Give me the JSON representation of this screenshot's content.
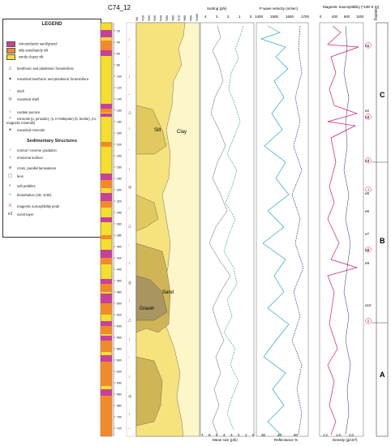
{
  "core_id": "C74_12",
  "legend": {
    "title": "LEGEND",
    "lithology": [
      {
        "label": "volcaniclastic sand/gravel",
        "color": "#c8409a"
      },
      {
        "label": "silty sand/sandy silt",
        "color": "#f08a2a"
      },
      {
        "label": "sandy clayey silt",
        "color": "#f5de2e"
      }
    ],
    "fossils": [
      {
        "label": "benthonic and planktonic foraminifera",
        "icon": "foraminifera-icon"
      },
      {
        "label": "reworked benthonic and planktonic foraminifera",
        "icon": "reworked-foraminifera-icon"
      },
      {
        "label": "shell",
        "icon": "shell-icon"
      },
      {
        "label": "reworked shell",
        "icon": "reworked-shell-icon"
      }
    ],
    "minerals": [
      {
        "label": "oxidate pumice",
        "icon": "pumice-icon"
      },
      {
        "label": "minerals (p, piroxide), (s, K-feldspate) (b, biotite), (m, magnetic minerals)",
        "icon": "minerals-icon"
      },
      {
        "label": "reworked minerals",
        "icon": "reworked-minerals-icon"
      }
    ],
    "structures_title": "Sedimentary Structures",
    "structures": [
      {
        "label": "normal / reverse gradation",
        "icon": "gradation-icon"
      },
      {
        "label": "erosional surface",
        "icon": "erosional-surface-icon"
      },
      {
        "label": "cross, parallel laminations",
        "icon": "lamination-icon"
      },
      {
        "label": "lens",
        "icon": "lens-icon"
      },
      {
        "label": "soft pebbles",
        "icon": "pebble-icon"
      },
      {
        "label": "bioturbation (2D, 3/4D)",
        "icon": "bioturbation-icon"
      },
      {
        "label": "magnetic susceptibility peak",
        "icon": "peak-icon"
      },
      {
        "label": "event layer",
        "icon": "event-layer-icon"
      }
    ]
  },
  "depth_ticks": [
    "20",
    "40",
    "60",
    "80",
    "100",
    "120",
    "140",
    "160",
    "180",
    "200",
    "220",
    "240",
    "260",
    "280",
    "300",
    "320",
    "340",
    "360",
    "380",
    "400",
    "420",
    "440",
    "460",
    "480",
    "500",
    "520",
    "540",
    "560",
    "580",
    "600",
    "620",
    "640",
    "660",
    "680",
    "700",
    "720"
  ],
  "grain_size_headers": [
    "%0",
    "%10",
    "%20",
    "%30",
    "%40",
    "%50",
    "%60",
    "%70",
    "%80",
    "%90",
    "%100"
  ],
  "grain_labels": {
    "silt": "Silt",
    "clay": "Clay",
    "sand": "Sand",
    "gravel": "Gravel"
  },
  "sorting_axis": {
    "title": "Sorting (phi)",
    "ticks": [
      "4",
      "3",
      "2",
      "1",
      "0"
    ]
  },
  "mean_axis": {
    "title": "Mean size (phi)",
    "ticks": [
      "7",
      "6",
      "5",
      "4",
      "3",
      "2",
      "1",
      "0"
    ]
  },
  "pwave_axis": {
    "title": "P wave velocity (m/sec)",
    "ticks": [
      "1400",
      "1500",
      "1600",
      "1700"
    ]
  },
  "reflectance_axis": {
    "title": "Reflectance %",
    "ticks": [
      "30",
      "40",
      "50"
    ]
  },
  "magsus_axis": {
    "title": "Magnetic Susceptibility (*10E-5 SI)",
    "ticks": [
      "0",
      "400",
      "800",
      "1200"
    ]
  },
  "density_axis": {
    "title": "Density (g/cm³)",
    "ticks": [
      "1.2",
      "1.6",
      "2.0"
    ]
  },
  "facies_title": "Facies",
  "facies": [
    "C",
    "B",
    "A"
  ],
  "events": [
    "e1",
    "e2",
    "e3",
    "e4",
    "e5",
    "e6",
    "e7",
    "e8",
    "e9",
    "e10"
  ],
  "peaks": [
    "1",
    "2",
    "3",
    "4",
    "5",
    "6"
  ],
  "colors": {
    "volcaniclastic": "#c8409a",
    "silty_sand": "#f08a2a",
    "clayey_silt": "#f5de2e",
    "cyan_curve": "#2aa7c9",
    "magenta_curve": "#d1197a",
    "green_curve": "#3aaf6a",
    "navy_curve": "#23307a"
  }
}
